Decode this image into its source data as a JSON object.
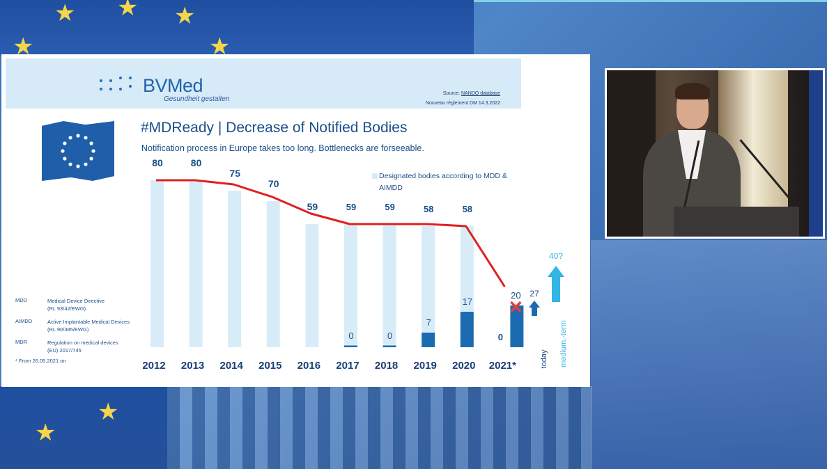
{
  "slide": {
    "logo_text": "BVMed",
    "logo_subtitle": "Gesundheit gestalten",
    "source_label": "Source:",
    "source_link": "NANDO database",
    "source_line2": "Nouveau règlement DM     14.3.2022",
    "title": "#MDReady | Decrease of Notified Bodies",
    "subtitle": "Notification process in Europe takes too long. Bottlenecks are forseeable.",
    "legend_text": "Designated bodies according to MDD & AIMDD",
    "abbreviations": [
      {
        "key": "MDD",
        "line1": "Medical Device Directive",
        "line2": "(RL 93/42/EWG)"
      },
      {
        "key": "AIMDD",
        "line1": "Active Implantable Medical Devices",
        "line2": "(RL 90/385/EWG)"
      },
      {
        "key": "MDR",
        "line1": "Regulation on medical devices",
        "line2": "(EU) 2017/745"
      }
    ],
    "footnote": "* From 26.05.2021 on"
  },
  "chart_data": {
    "type": "bar",
    "categories": [
      "2012",
      "2013",
      "2014",
      "2015",
      "2016",
      "2017",
      "2018",
      "2019",
      "2020",
      "2021*"
    ],
    "series": [
      {
        "name": "Designated bodies according to MDD & AIMDD",
        "values": [
          80,
          80,
          75,
          70,
          59,
          59,
          59,
          58,
          58,
          0
        ]
      },
      {
        "values": [
          null,
          null,
          null,
          null,
          null,
          0,
          0,
          7,
          17,
          20
        ]
      }
    ],
    "data_labels_light": [
      "80",
      "80",
      "75",
      "70",
      "59",
      "59",
      "59",
      "58",
      "58",
      "0"
    ],
    "data_labels_dark": [
      "0",
      "0",
      "7",
      "17",
      "20"
    ],
    "trend_line_values": [
      80,
      80,
      78,
      72,
      64,
      59,
      59,
      59,
      58,
      29
    ],
    "extra_columns": [
      {
        "label": "today",
        "value": 27
      },
      {
        "label": "medium.-term",
        "value": "40?"
      }
    ],
    "colors": {
      "light": "#d8ecf8",
      "dark": "#1c6bb0",
      "line": "#e02020",
      "extra": "#33b5e6",
      "cross": "#e04040"
    }
  }
}
